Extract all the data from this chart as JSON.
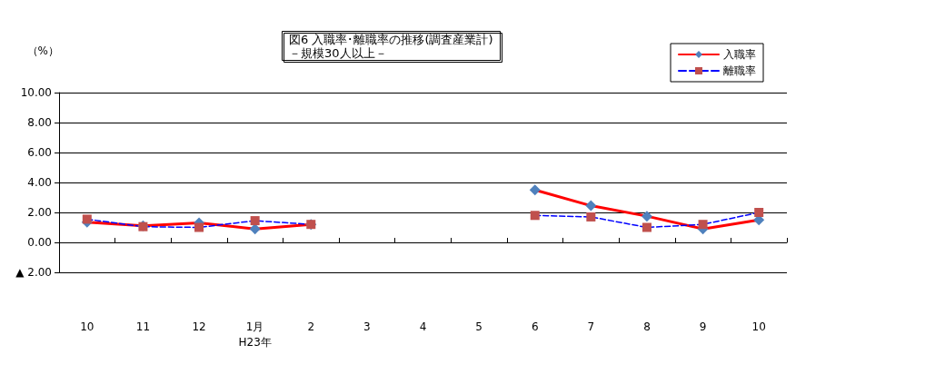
{
  "chart_data": {
    "type": "line",
    "title": "図6 入職率･離職率の推移(調査産業計)",
    "subtitle": "－規模30人以上－",
    "ylabel": "（%）",
    "categories": [
      "10",
      "11",
      "12",
      "1月\nH23年",
      "2",
      "3",
      "4",
      "5",
      "6",
      "7",
      "8",
      "9",
      "10"
    ],
    "series": [
      {
        "name": "入職率",
        "color": "#ff0000",
        "marker": "diamond",
        "colors": [
          "#4f81bd",
          "#4f81bd",
          "#4f81bd",
          "#4f81bd",
          "#4f81bd",
          null,
          null,
          null,
          "#4f81bd",
          "#4f81bd",
          "#4f81bd",
          "#4f81bd",
          "#4f81bd"
        ],
        "line_style": "solid",
        "values": [
          1.35,
          1.1,
          1.3,
          0.9,
          1.2,
          null,
          null,
          null,
          3.5,
          2.45,
          1.75,
          0.9,
          1.5
        ]
      },
      {
        "name": "離職率",
        "color": "#0000ff",
        "marker": "square",
        "colors": [
          "#c0504d",
          "#c0504d",
          "#c0504d",
          "#c0504d",
          "#c0504d",
          null,
          null,
          null,
          "#c0504d",
          "#c0504d",
          "#c0504d",
          "#c0504d",
          "#c0504d"
        ],
        "line_style": "dashed",
        "values": [
          1.55,
          1.05,
          1.0,
          1.45,
          1.2,
          null,
          null,
          null,
          1.8,
          1.7,
          1.0,
          1.2,
          2.0
        ]
      }
    ],
    "ylim": [
      -2,
      10
    ],
    "yticks": [
      {
        "value": -2,
        "label": "▲ 2.00"
      },
      {
        "value": 0,
        "label": "0.00"
      },
      {
        "value": 2,
        "label": "2.00"
      },
      {
        "value": 4,
        "label": "4.00"
      },
      {
        "value": 6,
        "label": "6.00"
      },
      {
        "value": 8,
        "label": "8.00"
      },
      {
        "value": 10,
        "label": "10.00"
      }
    ],
    "grid": "y",
    "legend": "top right"
  }
}
